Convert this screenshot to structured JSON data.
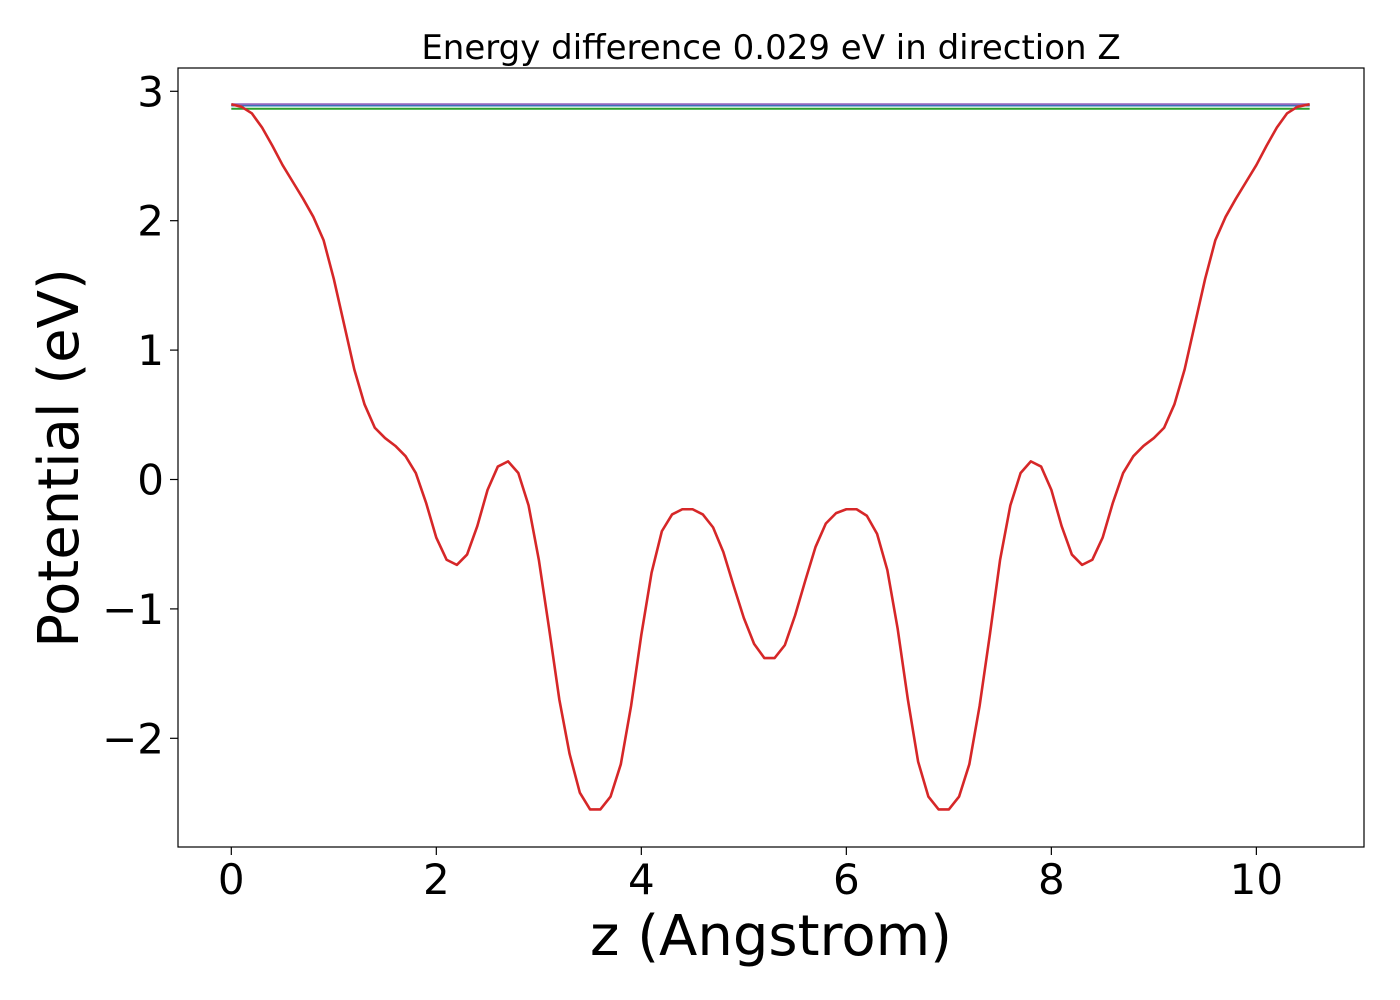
{
  "chart_data": {
    "type": "line",
    "title": "Energy difference 0.029 eV in direction Z",
    "xlabel": "z (Angstrom)",
    "ylabel": "Potential (eV)",
    "xlim": [
      -0.52,
      11.05
    ],
    "ylim": [
      -2.84,
      3.18
    ],
    "xticks": [
      0,
      2,
      4,
      6,
      8,
      10
    ],
    "xtick_labels": [
      "0",
      "2",
      "4",
      "6",
      "8",
      "10"
    ],
    "yticks": [
      -2,
      -1,
      0,
      1,
      2,
      3
    ],
    "ytick_labels": [
      "−2",
      "−1",
      "0",
      "1",
      "2",
      "3"
    ],
    "grid": false,
    "series": [
      {
        "color": "#1f77b4",
        "x": [
          0,
          10.52
        ],
        "y": [
          2.89,
          2.89
        ]
      },
      {
        "color": "#2ca02c",
        "x": [
          0,
          10.52
        ],
        "y": [
          2.865,
          2.865
        ]
      },
      {
        "color": "#9467bd",
        "x": [
          0,
          10.52
        ],
        "y": [
          2.9,
          2.9
        ]
      },
      {
        "color": "#d62728",
        "x": [
          0,
          0.1,
          0.2,
          0.3,
          0.4,
          0.5,
          0.6,
          0.7,
          0.8,
          0.9,
          1.0,
          1.1,
          1.2,
          1.3,
          1.4,
          1.5,
          1.6,
          1.7,
          1.8,
          1.9,
          2.0,
          2.1,
          2.2,
          2.3,
          2.4,
          2.5,
          2.6,
          2.7,
          2.8,
          2.9,
          3.0,
          3.1,
          3.2,
          3.3,
          3.4,
          3.5,
          3.6,
          3.7,
          3.8,
          3.9,
          4.0,
          4.1,
          4.2,
          4.3,
          4.4,
          4.5,
          4.6,
          4.7,
          4.8,
          4.9,
          5.0,
          5.1,
          5.2,
          5.3,
          5.4,
          5.5,
          5.6,
          5.7,
          5.8,
          5.9,
          6.0,
          6.1,
          6.2,
          6.3,
          6.4,
          6.5,
          6.6,
          6.7,
          6.8,
          6.9,
          7.0,
          7.1,
          7.2,
          7.3,
          7.4,
          7.5,
          7.6,
          7.7,
          7.8,
          7.9,
          8.0,
          8.1,
          8.2,
          8.3,
          8.4,
          8.5,
          8.6,
          8.7,
          8.8,
          8.9,
          9.0,
          9.1,
          9.2,
          9.3,
          9.4,
          9.5,
          9.6,
          9.7,
          9.8,
          9.9,
          10.0,
          10.1,
          10.2,
          10.3,
          10.4,
          10.52
        ],
        "y": [
          2.9,
          2.88,
          2.83,
          2.72,
          2.58,
          2.43,
          2.3,
          2.17,
          2.03,
          1.85,
          1.55,
          1.2,
          0.85,
          0.58,
          0.4,
          0.32,
          0.26,
          0.18,
          0.05,
          -0.18,
          -0.45,
          -0.62,
          -0.66,
          -0.58,
          -0.36,
          -0.08,
          0.1,
          0.14,
          0.05,
          -0.2,
          -0.62,
          -1.15,
          -1.7,
          -2.12,
          -2.42,
          -2.55,
          -2.55,
          -2.45,
          -2.2,
          -1.75,
          -1.2,
          -0.72,
          -0.4,
          -0.27,
          -0.23,
          -0.23,
          -0.27,
          -0.37,
          -0.56,
          -0.82,
          -1.07,
          -1.27,
          -1.38,
          -1.38,
          -1.28,
          -1.05,
          -0.78,
          -0.52,
          -0.34,
          -0.26,
          -0.23,
          -0.23,
          -0.28,
          -0.42,
          -0.7,
          -1.15,
          -1.7,
          -2.18,
          -2.45,
          -2.55,
          -2.55,
          -2.45,
          -2.2,
          -1.75,
          -1.2,
          -0.62,
          -0.2,
          0.05,
          0.14,
          0.1,
          -0.08,
          -0.36,
          -0.58,
          -0.66,
          -0.62,
          -0.45,
          -0.18,
          0.05,
          0.18,
          0.26,
          0.32,
          0.4,
          0.58,
          0.85,
          1.2,
          1.55,
          1.85,
          2.03,
          2.17,
          2.3,
          2.43,
          2.58,
          2.72,
          2.83,
          2.88,
          2.9
        ]
      }
    ]
  }
}
